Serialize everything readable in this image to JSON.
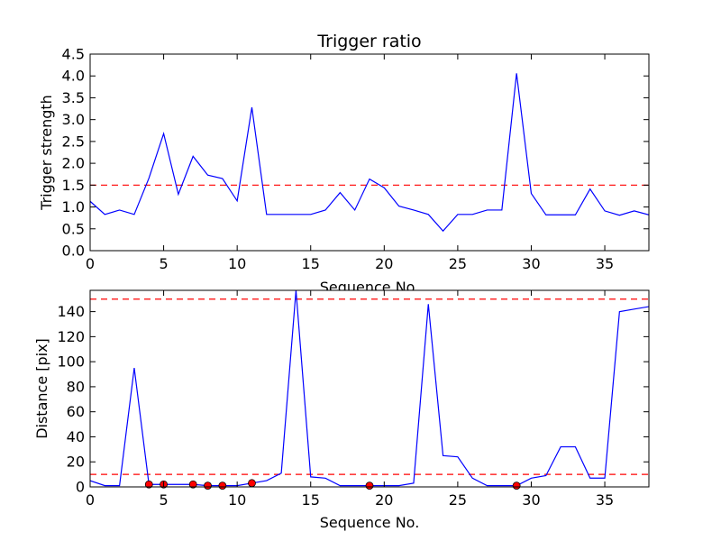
{
  "chart_data": [
    {
      "type": "line",
      "title": "Trigger ratio",
      "xlabel": "Sequence No.",
      "ylabel": "Trigger strength",
      "xlim": [
        0,
        38
      ],
      "ylim": [
        0,
        4.5
      ],
      "xticks": [
        0,
        5,
        10,
        15,
        20,
        25,
        30,
        35
      ],
      "yticks": [
        0.0,
        0.5,
        1.0,
        1.5,
        2.0,
        2.5,
        3.0,
        3.5,
        4.0,
        4.5
      ],
      "ytick_labels": [
        "0.0",
        "0.5",
        "1.0",
        "1.5",
        "2.0",
        "2.5",
        "3.0",
        "3.5",
        "4.0",
        "4.5"
      ],
      "grid": false,
      "series": [
        {
          "color": "#0000ff",
          "style": "solid",
          "x": [
            0,
            1,
            2,
            3,
            4,
            5,
            6,
            7,
            8,
            9,
            10,
            11,
            12,
            13,
            14,
            15,
            16,
            17,
            18,
            19,
            20,
            21,
            22,
            23,
            24,
            25,
            26,
            27,
            28,
            29,
            30,
            31,
            32,
            33,
            34,
            35,
            36,
            37,
            38
          ],
          "values": [
            1.13,
            0.83,
            0.93,
            0.83,
            1.66,
            2.68,
            1.29,
            2.16,
            1.73,
            1.65,
            1.14,
            3.28,
            0.83,
            0.83,
            0.83,
            0.83,
            0.93,
            1.33,
            0.93,
            1.64,
            1.44,
            1.02,
            0.93,
            0.83,
            0.45,
            0.83,
            0.83,
            0.93,
            0.93,
            4.06,
            1.31,
            0.82,
            0.82,
            0.82,
            1.41,
            0.91,
            0.81,
            0.91,
            0.82
          ]
        }
      ],
      "hlines": [
        {
          "y": 1.5,
          "color": "#ff0000",
          "style": "dashed"
        }
      ]
    },
    {
      "type": "line",
      "title": "",
      "xlabel": "Sequence No.",
      "ylabel": "Distance [pix]",
      "xlim": [
        0,
        38
      ],
      "ylim": [
        0,
        157
      ],
      "xticks": [
        0,
        5,
        10,
        15,
        20,
        25,
        30,
        35
      ],
      "yticks": [
        0,
        20,
        40,
        60,
        80,
        100,
        120,
        140
      ],
      "ytick_labels": [
        "0",
        "20",
        "40",
        "60",
        "80",
        "100",
        "120",
        "140"
      ],
      "grid": false,
      "series": [
        {
          "color": "#0000ff",
          "style": "solid",
          "x": [
            0,
            1,
            2,
            3,
            4,
            5,
            6,
            7,
            8,
            9,
            10,
            11,
            12,
            13,
            14,
            15,
            16,
            17,
            18,
            19,
            20,
            21,
            22,
            23,
            24,
            25,
            26,
            27,
            28,
            29,
            30,
            31,
            32,
            33,
            34,
            35,
            36,
            37,
            38
          ],
          "values": [
            5,
            1,
            1,
            95,
            2,
            2,
            2,
            2,
            1,
            1,
            1,
            3,
            5,
            11,
            157,
            8,
            7,
            1,
            1,
            1,
            1,
            1,
            3,
            146,
            25,
            24,
            7,
            1,
            1,
            1,
            7,
            9,
            32,
            32,
            7,
            7,
            140,
            142,
            144
          ]
        },
        {
          "type": "scatter",
          "color": "#ff0000",
          "x": [
            4,
            5,
            7,
            8,
            9,
            11,
            19,
            29
          ],
          "values": [
            2,
            2,
            2,
            1,
            1,
            3,
            1,
            1
          ]
        }
      ],
      "hlines": [
        {
          "y": 150,
          "color": "#ff0000",
          "style": "dashed"
        },
        {
          "y": 10,
          "color": "#ff0000",
          "style": "dashed"
        }
      ]
    }
  ]
}
